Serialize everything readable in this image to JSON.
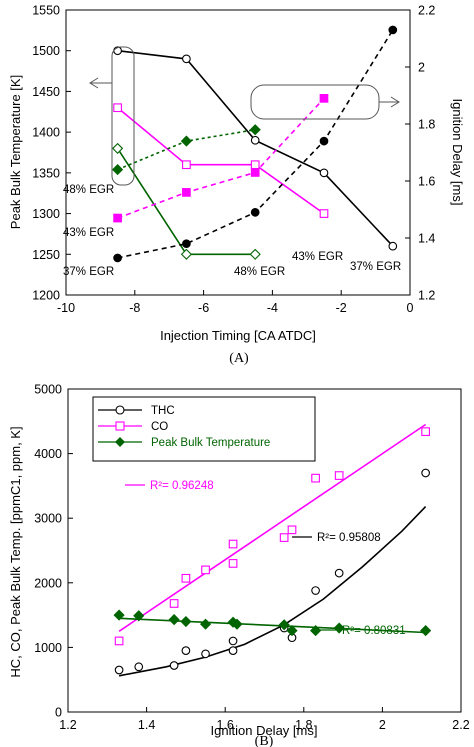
{
  "chart_data": [
    {
      "type": "line",
      "panel_label": "(A)",
      "xlabel": "Injection Timing [CA ATDC]",
      "ylabel": "Peak  Bulk Temperature [K]",
      "y2label": "Ignition Delay [ms]",
      "xlim": [
        -10,
        0
      ],
      "ylim": [
        1200,
        1550
      ],
      "y2lim": [
        1.2,
        2.2
      ],
      "xticks": [
        "-10",
        "-8",
        "-6",
        "-4",
        "-2",
        "0"
      ],
      "yticks": [
        "1200",
        "1250",
        "1300",
        "1350",
        "1400",
        "1450",
        "1500",
        "1550"
      ],
      "y2ticks": [
        "1.2",
        "1.4",
        "1.6",
        "1.8",
        "2",
        "2.2"
      ],
      "grid": false,
      "series": [
        {
          "axis": "left",
          "color": "#000000",
          "style": "solid",
          "marker": "open-circle",
          "x": [
            -8.5,
            -6.5,
            -4.5,
            -2.5,
            -0.5
          ],
          "y": [
            1500,
            1490,
            1390,
            1350,
            1260
          ]
        },
        {
          "axis": "left",
          "color": "#ff00ff",
          "style": "solid",
          "marker": "open-square",
          "x": [
            -8.5,
            -6.5,
            -4.5,
            -2.5
          ],
          "y": [
            1430,
            1360,
            1360,
            1300
          ]
        },
        {
          "axis": "left",
          "color": "#006400",
          "style": "solid",
          "marker": "open-diamond",
          "x": [
            -8.5,
            -6.5,
            -4.5
          ],
          "y": [
            1380,
            1250,
            1250
          ]
        },
        {
          "axis": "right",
          "color": "#000000",
          "style": "dashed",
          "marker": "filled-circle",
          "x": [
            -8.5,
            -6.5,
            -4.5,
            -2.5,
            -0.5
          ],
          "y": [
            1.33,
            1.38,
            1.49,
            1.74,
            2.13
          ]
        },
        {
          "axis": "right",
          "color": "#ff00ff",
          "style": "dashed",
          "marker": "filled-square",
          "x": [
            -8.5,
            -6.5,
            -4.5,
            -2.5
          ],
          "y": [
            1.47,
            1.56,
            1.63,
            1.89
          ]
        },
        {
          "axis": "right",
          "color": "#006400",
          "style": "dashed",
          "marker": "filled-diamond",
          "x": [
            -8.5,
            -6.5,
            -4.5
          ],
          "y": [
            1.64,
            1.74,
            1.78
          ]
        }
      ],
      "annotations": [
        "48% EGR",
        "43% EGR",
        "37% EGR",
        "43% EGR",
        "48% EGR",
        "37% EGR"
      ]
    },
    {
      "type": "scatter",
      "panel_label": "(B)",
      "xlabel": "Ignition Delay [ms]",
      "ylabel": "HC, CO, Peak Bulk Temp. [ppmC1, ppm, K]",
      "xlim": [
        1.2,
        2.2
      ],
      "ylim": [
        0,
        5000
      ],
      "xticks": [
        "1.2",
        "1.4",
        "1.6",
        "1.8",
        "2",
        "2.2"
      ],
      "yticks": [
        "0",
        "1000",
        "2000",
        "3000",
        "4000",
        "5000"
      ],
      "grid": false,
      "legend_position": "top-left",
      "series": [
        {
          "name": "THC",
          "color": "#000000",
          "marker": "open-circle",
          "points": [
            [
              1.33,
              650
            ],
            [
              1.38,
              700
            ],
            [
              1.47,
              720
            ],
            [
              1.5,
              950
            ],
            [
              1.55,
              900
            ],
            [
              1.62,
              950
            ],
            [
              1.62,
              1100
            ],
            [
              1.75,
              1300
            ],
            [
              1.77,
              1150
            ],
            [
              1.83,
              1880
            ],
            [
              1.89,
              2150
            ],
            [
              2.11,
              3700
            ]
          ],
          "fit": "exponential",
          "fit_points": [
            [
              1.33,
              560
            ],
            [
              1.45,
              700
            ],
            [
              1.55,
              850
            ],
            [
              1.65,
              1050
            ],
            [
              1.75,
              1350
            ],
            [
              1.85,
              1750
            ],
            [
              1.95,
              2250
            ],
            [
              2.05,
              2800
            ],
            [
              2.11,
              3180
            ]
          ],
          "r2_label": "R²= 0.95808"
        },
        {
          "name": "CO",
          "color": "#ff00ff",
          "marker": "open-square",
          "points": [
            [
              1.33,
              1100
            ],
            [
              1.47,
              1680
            ],
            [
              1.5,
              2070
            ],
            [
              1.55,
              2200
            ],
            [
              1.62,
              2300
            ],
            [
              1.62,
              2600
            ],
            [
              1.75,
              2700
            ],
            [
              1.77,
              2820
            ],
            [
              1.83,
              3620
            ],
            [
              1.89,
              3660
            ],
            [
              2.11,
              4340
            ]
          ],
          "fit": "linear",
          "fit_points": [
            [
              1.33,
              1250
            ],
            [
              2.11,
              4450
            ]
          ],
          "r2_label": "R²= 0.96248"
        },
        {
          "name": "Peak Bulk Temperature",
          "color": "#006400",
          "marker": "filled-diamond",
          "points": [
            [
              1.33,
              1500
            ],
            [
              1.38,
              1490
            ],
            [
              1.47,
              1430
            ],
            [
              1.5,
              1400
            ],
            [
              1.55,
              1360
            ],
            [
              1.62,
              1390
            ],
            [
              1.63,
              1360
            ],
            [
              1.75,
              1350
            ],
            [
              1.77,
              1260
            ],
            [
              1.83,
              1260
            ],
            [
              1.89,
              1300
            ],
            [
              2.11,
              1260
            ]
          ],
          "fit": "linear",
          "fit_points": [
            [
              1.33,
              1450
            ],
            [
              2.11,
              1230
            ]
          ],
          "r2_label": "R²= 0.80831"
        }
      ]
    }
  ]
}
